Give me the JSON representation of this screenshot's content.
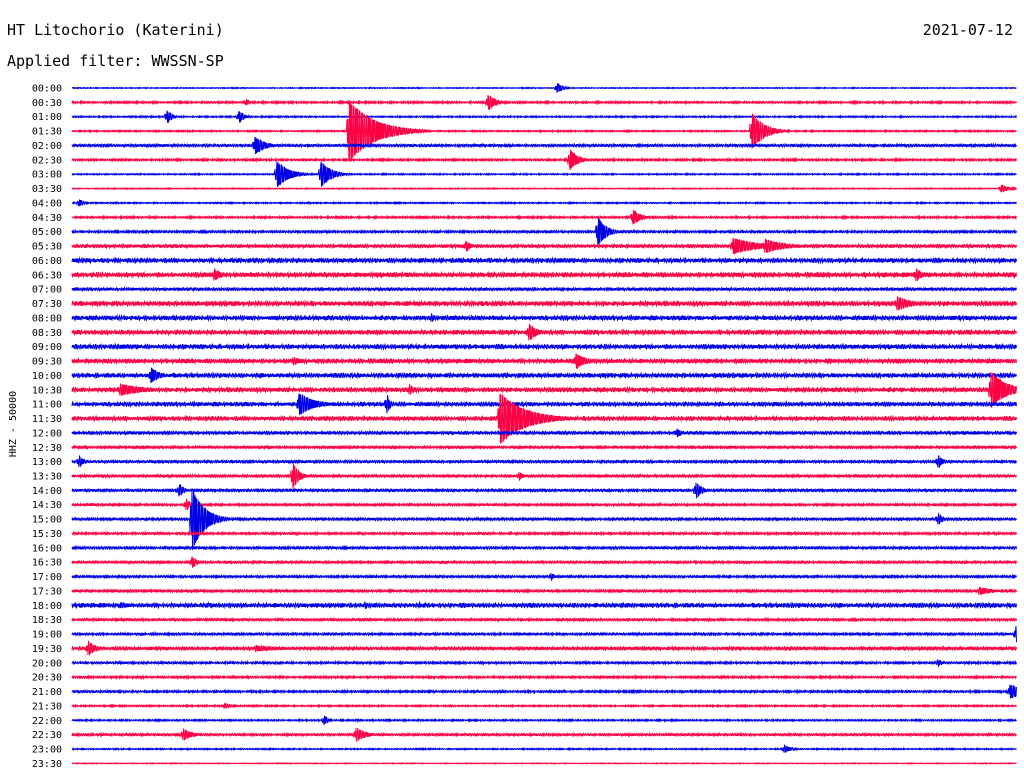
{
  "header": {
    "station": "HT Litochorio (Katerini)",
    "date": "2021-07-12",
    "filter": "Applied filter: WWSSN-SP"
  },
  "chart_data": {
    "type": "helicorder",
    "ylabel": "HHZ - 50000",
    "colors": [
      "#0000e6",
      "#ff0044"
    ],
    "traces": [
      {
        "time": "00:00",
        "noise": 0.35,
        "events": [
          {
            "minute": 15.4,
            "amp": 5,
            "dur": 0.6
          }
        ]
      },
      {
        "time": "00:30",
        "noise": 0.7,
        "events": [
          {
            "minute": 13.2,
            "amp": 8,
            "dur": 0.8
          },
          {
            "minute": 5.5,
            "amp": 4,
            "dur": 0.4
          }
        ]
      },
      {
        "time": "01:00",
        "noise": 0.55,
        "events": [
          {
            "minute": 3.0,
            "amp": 7,
            "dur": 0.5
          },
          {
            "minute": 5.3,
            "amp": 6,
            "dur": 0.5
          }
        ]
      },
      {
        "time": "01:30",
        "noise": 0.55,
        "events": [
          {
            "minute": 8.8,
            "amp": 30,
            "dur": 2.5
          },
          {
            "minute": 21.6,
            "amp": 18,
            "dur": 1.2
          }
        ]
      },
      {
        "time": "02:00",
        "noise": 1.0,
        "events": [
          {
            "minute": 5.8,
            "amp": 9,
            "dur": 1.0
          }
        ]
      },
      {
        "time": "02:30",
        "noise": 0.75,
        "events": [
          {
            "minute": 15.8,
            "amp": 11,
            "dur": 0.8
          }
        ]
      },
      {
        "time": "03:00",
        "noise": 0.5,
        "events": [
          {
            "minute": 6.5,
            "amp": 13,
            "dur": 1.2
          },
          {
            "minute": 7.9,
            "amp": 13,
            "dur": 1.0
          }
        ]
      },
      {
        "time": "03:30",
        "noise": 0.4,
        "events": [
          {
            "minute": 29.5,
            "amp": 4,
            "dur": 0.8
          }
        ]
      },
      {
        "time": "04:00",
        "noise": 0.5,
        "events": [
          {
            "minute": 0.2,
            "amp": 4,
            "dur": 0.5
          }
        ]
      },
      {
        "time": "04:30",
        "noise": 0.7,
        "events": [
          {
            "minute": 17.8,
            "amp": 8,
            "dur": 0.8
          }
        ]
      },
      {
        "time": "05:00",
        "noise": 0.9,
        "events": [
          {
            "minute": 16.7,
            "amp": 15,
            "dur": 0.8
          }
        ]
      },
      {
        "time": "05:30",
        "noise": 1.3,
        "events": [
          {
            "minute": 12.5,
            "amp": 6,
            "dur": 0.5
          },
          {
            "minute": 21.0,
            "amp": 8,
            "dur": 2.5
          },
          {
            "minute": 22.0,
            "amp": 7,
            "dur": 2.0
          }
        ]
      },
      {
        "time": "06:00",
        "noise": 1.6,
        "events": []
      },
      {
        "time": "06:30",
        "noise": 1.7,
        "events": [
          {
            "minute": 4.5,
            "amp": 6,
            "dur": 0.8
          },
          {
            "minute": 26.8,
            "amp": 7,
            "dur": 0.6
          }
        ]
      },
      {
        "time": "07:00",
        "noise": 1.1,
        "events": []
      },
      {
        "time": "07:30",
        "noise": 1.7,
        "events": [
          {
            "minute": 26.2,
            "amp": 7,
            "dur": 1.5
          }
        ]
      },
      {
        "time": "08:00",
        "noise": 1.6,
        "events": [
          {
            "minute": 11.4,
            "amp": 4,
            "dur": 0.5
          }
        ]
      },
      {
        "time": "08:30",
        "noise": 1.6,
        "events": [
          {
            "minute": 14.5,
            "amp": 9,
            "dur": 0.8
          }
        ]
      },
      {
        "time": "09:00",
        "noise": 1.6,
        "events": []
      },
      {
        "time": "09:30",
        "noise": 1.6,
        "events": [
          {
            "minute": 16.0,
            "amp": 8,
            "dur": 1.0
          },
          {
            "minute": 7.0,
            "amp": 4,
            "dur": 1.0
          }
        ]
      },
      {
        "time": "10:00",
        "noise": 1.6,
        "events": [
          {
            "minute": 2.5,
            "amp": 8,
            "dur": 0.8
          }
        ]
      },
      {
        "time": "10:30",
        "noise": 1.6,
        "events": [
          {
            "minute": 1.5,
            "amp": 6,
            "dur": 2.5
          },
          {
            "minute": 29.2,
            "amp": 18,
            "dur": 1.5
          },
          {
            "minute": 10.7,
            "amp": 5,
            "dur": 0.6
          }
        ]
      },
      {
        "time": "11:00",
        "noise": 1.5,
        "events": [
          {
            "minute": 7.2,
            "amp": 11,
            "dur": 1.5
          },
          {
            "minute": 10.0,
            "amp": 10,
            "dur": 0.3
          }
        ]
      },
      {
        "time": "11:30",
        "noise": 1.5,
        "events": [
          {
            "minute": 13.6,
            "amp": 25,
            "dur": 2.5
          }
        ]
      },
      {
        "time": "12:00",
        "noise": 1.2,
        "events": [
          {
            "minute": 19.2,
            "amp": 5,
            "dur": 0.5
          }
        ]
      },
      {
        "time": "12:30",
        "noise": 1.0,
        "events": []
      },
      {
        "time": "13:00",
        "noise": 1.0,
        "events": [
          {
            "minute": 0.2,
            "amp": 6,
            "dur": 0.5
          },
          {
            "minute": 27.5,
            "amp": 7,
            "dur": 0.5
          }
        ]
      },
      {
        "time": "13:30",
        "noise": 1.0,
        "events": [
          {
            "minute": 7.0,
            "amp": 14,
            "dur": 0.6
          },
          {
            "minute": 14.2,
            "amp": 4,
            "dur": 0.5
          }
        ]
      },
      {
        "time": "14:00",
        "noise": 1.0,
        "events": [
          {
            "minute": 3.4,
            "amp": 6,
            "dur": 0.5
          },
          {
            "minute": 19.8,
            "amp": 9,
            "dur": 0.6
          }
        ]
      },
      {
        "time": "14:30",
        "noise": 0.9,
        "events": [
          {
            "minute": 3.6,
            "amp": 6,
            "dur": 0.5
          }
        ]
      },
      {
        "time": "15:00",
        "noise": 1.0,
        "events": [
          {
            "minute": 3.8,
            "amp": 32,
            "dur": 1.2
          },
          {
            "minute": 27.5,
            "amp": 6,
            "dur": 0.5
          }
        ]
      },
      {
        "time": "15:30",
        "noise": 0.8,
        "events": []
      },
      {
        "time": "16:00",
        "noise": 1.0,
        "events": []
      },
      {
        "time": "16:30",
        "noise": 0.9,
        "events": [
          {
            "minute": 3.8,
            "amp": 6,
            "dur": 0.5
          }
        ]
      },
      {
        "time": "17:00",
        "noise": 0.9,
        "events": [
          {
            "minute": 15.2,
            "amp": 4,
            "dur": 0.4
          }
        ]
      },
      {
        "time": "17:30",
        "noise": 1.0,
        "events": [
          {
            "minute": 28.8,
            "amp": 4,
            "dur": 1.5
          }
        ]
      },
      {
        "time": "18:00",
        "noise": 1.6,
        "events": [
          {
            "minute": 9.3,
            "amp": 4,
            "dur": 0.3
          },
          {
            "minute": 11.0,
            "amp": 4,
            "dur": 0.3
          },
          {
            "minute": 1.5,
            "amp": 3,
            "dur": 1.5
          }
        ]
      },
      {
        "time": "18:30",
        "noise": 0.9,
        "events": []
      },
      {
        "time": "19:00",
        "noise": 0.9,
        "events": [
          {
            "minute": 30.0,
            "amp": 8,
            "dur": 0.4
          }
        ]
      },
      {
        "time": "19:30",
        "noise": 1.3,
        "events": [
          {
            "minute": 0.5,
            "amp": 7,
            "dur": 0.8
          },
          {
            "minute": 5.8,
            "amp": 3,
            "dur": 3.0
          }
        ]
      },
      {
        "time": "20:00",
        "noise": 0.8,
        "events": [
          {
            "minute": 27.5,
            "amp": 4,
            "dur": 0.4
          }
        ]
      },
      {
        "time": "20:30",
        "noise": 0.8,
        "events": []
      },
      {
        "time": "21:00",
        "noise": 0.8,
        "events": [
          {
            "minute": 29.8,
            "amp": 7,
            "dur": 1.5
          }
        ]
      },
      {
        "time": "21:30",
        "noise": 0.6,
        "events": [
          {
            "minute": 4.8,
            "amp": 3,
            "dur": 0.8
          }
        ]
      },
      {
        "time": "22:00",
        "noise": 0.6,
        "events": [
          {
            "minute": 8.0,
            "amp": 5,
            "dur": 0.4
          }
        ]
      },
      {
        "time": "22:30",
        "noise": 0.9,
        "events": [
          {
            "minute": 3.5,
            "amp": 6,
            "dur": 1.0
          },
          {
            "minute": 9.0,
            "amp": 7,
            "dur": 1.0
          }
        ]
      },
      {
        "time": "23:00",
        "noise": 0.5,
        "events": [
          {
            "minute": 22.6,
            "amp": 4,
            "dur": 0.8
          }
        ]
      },
      {
        "time": "23:30",
        "noise": 0.3,
        "events": []
      }
    ]
  }
}
